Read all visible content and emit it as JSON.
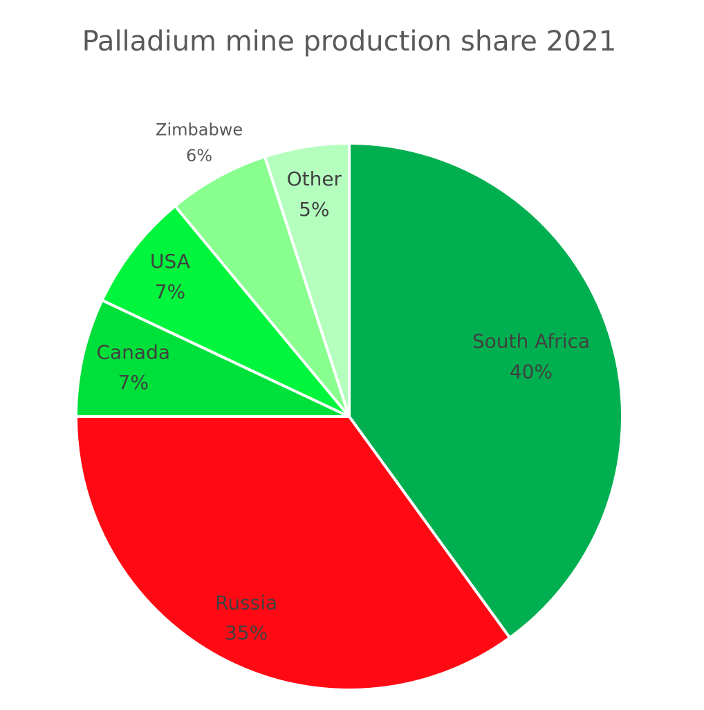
{
  "chart_data": {
    "type": "pie",
    "title": "Palladium mine production share 2021",
    "categories": [
      "South Africa",
      "Russia",
      "Canada",
      "USA",
      "Zimbabwe",
      "Other"
    ],
    "values": [
      40,
      35,
      7,
      7,
      6,
      5
    ],
    "value_labels": [
      "40%",
      "35%",
      "7%",
      "7%",
      "6%",
      "5%"
    ],
    "colors": [
      "#00b050",
      "#ff0a14",
      "#00e03a",
      "#00f53c",
      "#88ff8f",
      "#b4ffbe"
    ]
  }
}
